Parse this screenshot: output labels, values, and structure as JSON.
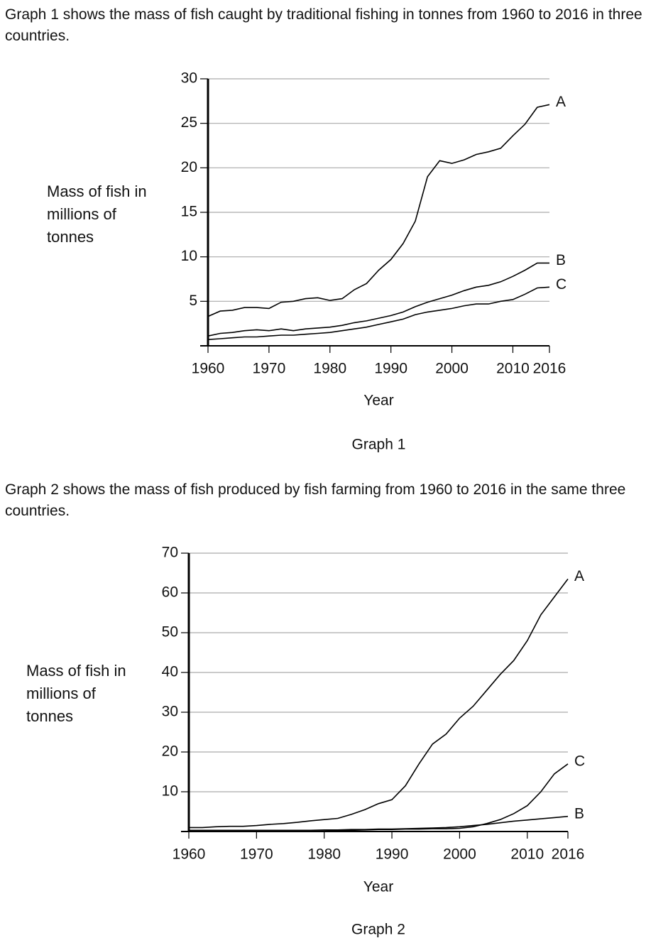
{
  "chart_data": [
    {
      "type": "line",
      "intro": "Graph 1 shows the mass of fish caught by traditional fishing in tonnes from 1960 to 2016 in three countries.",
      "ylabel": "Mass of fish in millions of tonnes",
      "xlabel": "Year",
      "caption": "Graph 1",
      "x": [
        1960,
        1962,
        1964,
        1966,
        1968,
        1970,
        1972,
        1974,
        1976,
        1978,
        1980,
        1982,
        1984,
        1986,
        1988,
        1990,
        1992,
        1994,
        1996,
        1998,
        2000,
        2002,
        2004,
        2006,
        2008,
        2010,
        2012,
        2014,
        2016
      ],
      "series": [
        {
          "name": "A",
          "color": "#000",
          "values": [
            3.3,
            3.9,
            4.0,
            4.3,
            4.3,
            4.2,
            4.9,
            5.0,
            5.3,
            5.4,
            5.1,
            5.3,
            6.3,
            7.0,
            8.5,
            9.7,
            11.5,
            14.0,
            19.0,
            20.8,
            20.5,
            20.9,
            21.5,
            21.8,
            22.2,
            23.6,
            24.9,
            26.8,
            27.1
          ]
        },
        {
          "name": "B",
          "color": "#000",
          "values": [
            1.1,
            1.4,
            1.5,
            1.7,
            1.8,
            1.7,
            1.9,
            1.7,
            1.9,
            2.0,
            2.1,
            2.3,
            2.6,
            2.8,
            3.1,
            3.4,
            3.8,
            4.4,
            4.9,
            5.3,
            5.7,
            6.2,
            6.6,
            6.8,
            7.2,
            7.8,
            8.5,
            9.3,
            9.3
          ]
        },
        {
          "name": "C",
          "color": "#000",
          "values": [
            0.7,
            0.8,
            0.9,
            1.0,
            1.0,
            1.1,
            1.2,
            1.2,
            1.3,
            1.4,
            1.5,
            1.7,
            1.9,
            2.1,
            2.4,
            2.7,
            3.0,
            3.5,
            3.8,
            4.0,
            4.2,
            4.5,
            4.7,
            4.7,
            5.0,
            5.2,
            5.8,
            6.5,
            6.6
          ]
        }
      ],
      "xlim": [
        1960,
        2016
      ],
      "xticks": [
        1960,
        1970,
        1980,
        1990,
        2000,
        2010,
        2016
      ],
      "ylim": [
        0,
        30
      ],
      "yticks": [
        5,
        10,
        15,
        20,
        25,
        30
      ],
      "grid": true
    },
    {
      "type": "line",
      "intro": "Graph 2 shows the mass of fish produced by fish farming from 1960 to 2016 in the same three countries.",
      "ylabel": "Mass of fish in millions of tonnes",
      "xlabel": "Year",
      "caption": "Graph 2",
      "x": [
        1960,
        1962,
        1964,
        1966,
        1968,
        1970,
        1972,
        1974,
        1976,
        1978,
        1980,
        1982,
        1984,
        1986,
        1988,
        1990,
        1992,
        1994,
        1996,
        1998,
        2000,
        2002,
        2004,
        2006,
        2008,
        2010,
        2012,
        2014,
        2016
      ],
      "series": [
        {
          "name": "A",
          "color": "#000",
          "values": [
            1.0,
            1.0,
            1.2,
            1.3,
            1.3,
            1.5,
            1.8,
            2.0,
            2.3,
            2.7,
            3.0,
            3.3,
            4.3,
            5.5,
            7.0,
            8.0,
            11.5,
            17.0,
            22.0,
            24.5,
            28.5,
            31.5,
            35.5,
            39.5,
            43.0,
            48.0,
            54.5,
            59.0,
            63.5
          ]
        },
        {
          "name": "C",
          "color": "#000",
          "values": [
            0.1,
            0.1,
            0.1,
            0.1,
            0.1,
            0.1,
            0.1,
            0.1,
            0.1,
            0.1,
            0.1,
            0.2,
            0.3,
            0.4,
            0.5,
            0.5,
            0.6,
            0.6,
            0.7,
            0.7,
            0.8,
            1.2,
            2.0,
            3.0,
            4.5,
            6.5,
            10.0,
            14.5,
            17.0
          ]
        },
        {
          "name": "B",
          "color": "#000",
          "values": [
            0.3,
            0.3,
            0.3,
            0.3,
            0.3,
            0.3,
            0.3,
            0.3,
            0.3,
            0.3,
            0.4,
            0.4,
            0.5,
            0.5,
            0.6,
            0.6,
            0.7,
            0.8,
            0.9,
            1.0,
            1.2,
            1.5,
            1.8,
            2.2,
            2.6,
            2.9,
            3.2,
            3.5,
            3.8
          ]
        }
      ],
      "xlim": [
        1960,
        2016
      ],
      "xticks": [
        1960,
        1970,
        1980,
        1990,
        2000,
        2010,
        2016
      ],
      "ylim": [
        0,
        70
      ],
      "yticks": [
        10,
        20,
        30,
        40,
        50,
        60,
        70
      ],
      "grid": true
    }
  ]
}
